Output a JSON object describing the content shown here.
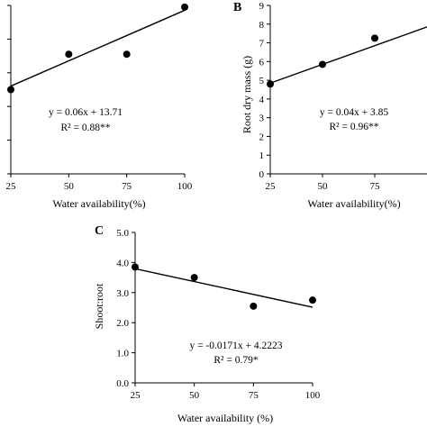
{
  "chart_data": [
    {
      "type": "scatter",
      "panel": "",
      "xlabel": "Water availability(%)",
      "ylabel": "",
      "xlim": [
        25,
        100
      ],
      "ylim": [
        10,
        20
      ],
      "x_ticks": [
        25,
        50,
        75,
        100
      ],
      "y_ticks": [],
      "points": [
        {
          "x": 25,
          "y": 15.0
        },
        {
          "x": 50,
          "y": 17.1
        },
        {
          "x": 75,
          "y": 17.1
        },
        {
          "x": 100,
          "y": 19.9
        }
      ],
      "fit": {
        "slope": 0.06,
        "intercept": 13.71
      },
      "equation": "y = 0.06x + 13.71",
      "r2": "R² = 0.88**"
    },
    {
      "type": "scatter",
      "panel": "B",
      "xlabel": "Water availability(%)",
      "ylabel": "Root dry mass (g)",
      "xlim": [
        25,
        100
      ],
      "ylim": [
        0,
        9
      ],
      "x_ticks": [
        25,
        50,
        75
      ],
      "y_ticks": [
        0,
        1,
        2,
        3,
        4,
        5,
        6,
        7,
        8,
        9
      ],
      "points": [
        {
          "x": 25,
          "y": 4.8
        },
        {
          "x": 50,
          "y": 5.85
        },
        {
          "x": 75,
          "y": 7.25
        }
      ],
      "fit": {
        "slope": 0.04,
        "intercept": 3.85
      },
      "equation": "y = 0.04x + 3.85",
      "r2": "R² = 0.96**"
    },
    {
      "type": "scatter",
      "panel": "C",
      "xlabel": "Water availability (%)",
      "ylabel": "Shoot:root",
      "xlim": [
        25,
        100
      ],
      "ylim": [
        0,
        5
      ],
      "x_ticks": [
        25,
        50,
        75,
        100
      ],
      "y_ticks": [
        "0.0",
        "1.0",
        "2.0",
        "3.0",
        "4.0",
        "5.0"
      ],
      "points": [
        {
          "x": 25,
          "y": 3.85
        },
        {
          "x": 50,
          "y": 3.5
        },
        {
          "x": 75,
          "y": 2.55
        },
        {
          "x": 100,
          "y": 2.75
        }
      ],
      "fit": {
        "slope": -0.0171,
        "intercept": 4.2223
      },
      "equation": "y = -0.0171x + 4.2223",
      "r2": "R² = 0.79*"
    }
  ]
}
